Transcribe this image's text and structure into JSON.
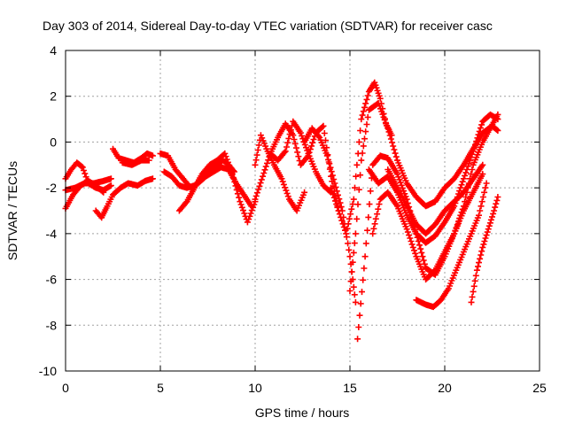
{
  "chart_data": {
    "type": "scatter",
    "title": "Day 303 of 2014, Sidereal Day-to-day VTEC variation (SDTVAR) for receiver casc",
    "xlabel": "GPS time / hours",
    "ylabel": "SDTVAR / TECUs",
    "xlim": [
      0,
      25
    ],
    "ylim": [
      -10,
      4
    ],
    "x_ticks": [
      0,
      5,
      10,
      15,
      20,
      25
    ],
    "y_ticks": [
      -10,
      -8,
      -6,
      -4,
      -2,
      0,
      2,
      4
    ],
    "grid": true,
    "marker": "plus",
    "color": "#ff0000",
    "series": [
      {
        "name": "track-a",
        "x": [
          0,
          0.3,
          0.6,
          0.9,
          1.2,
          1.6,
          2.0,
          2.4
        ],
        "y": [
          -1.6,
          -1.2,
          -0.9,
          -1.1,
          -1.8,
          -2.0,
          -2.1,
          -1.9
        ]
      },
      {
        "name": "track-b",
        "x": [
          0,
          0.4,
          0.8,
          1.2,
          1.6,
          2.0
        ],
        "y": [
          -2.9,
          -2.3,
          -1.9,
          -1.7,
          -1.9,
          -2.2
        ]
      },
      {
        "name": "track-c",
        "x": [
          0,
          0.5,
          1.0,
          1.5,
          2.0,
          2.4
        ],
        "y": [
          -2.1,
          -2.0,
          -1.8,
          -1.8,
          -1.7,
          -1.6
        ]
      },
      {
        "name": "track-d",
        "x": [
          1.6,
          1.9,
          2.2,
          2.5,
          2.9,
          3.3,
          3.8,
          4.2,
          4.6
        ],
        "y": [
          -3.0,
          -3.3,
          -2.8,
          -2.3,
          -2.0,
          -1.8,
          -1.9,
          -1.7,
          -1.6
        ]
      },
      {
        "name": "track-e",
        "x": [
          2.5,
          2.8,
          3.2,
          3.6,
          4.0,
          4.3,
          4.6
        ],
        "y": [
          -0.3,
          -0.7,
          -0.8,
          -0.9,
          -0.7,
          -0.5,
          -0.6
        ]
      },
      {
        "name": "track-f",
        "x": [
          3.0,
          3.5,
          4.0,
          4.4
        ],
        "y": [
          -0.9,
          -1.0,
          -0.8,
          -0.8
        ]
      },
      {
        "name": "track-g",
        "x": [
          5.0,
          5.4,
          5.8,
          6.2,
          6.6
        ],
        "y": [
          -0.5,
          -0.6,
          -1.2,
          -1.6,
          -2.0
        ]
      },
      {
        "name": "track-h",
        "x": [
          5.2,
          5.6,
          6.0,
          6.4,
          6.8,
          7.2,
          7.6,
          8.0,
          8.3,
          8.6,
          8.9
        ],
        "y": [
          -1.3,
          -1.5,
          -1.9,
          -2.0,
          -1.9,
          -1.6,
          -1.2,
          -1.0,
          -0.8,
          -1.0,
          -1.3
        ]
      },
      {
        "name": "track-i",
        "x": [
          6.0,
          6.4,
          6.8,
          7.2,
          7.6,
          8.0,
          8.4,
          8.8,
          9.2,
          9.6,
          10.0
        ],
        "y": [
          -3.0,
          -2.6,
          -2.0,
          -1.4,
          -1.0,
          -0.8,
          -0.5,
          -1.4,
          -2.6,
          -3.5,
          -2.6
        ]
      },
      {
        "name": "track-j",
        "x": [
          7.0,
          7.4,
          7.8,
          8.2,
          8.6,
          9.0,
          9.4,
          9.8
        ],
        "y": [
          -1.8,
          -1.5,
          -1.3,
          -1.1,
          -1.2,
          -1.8,
          -2.3,
          -2.8
        ]
      },
      {
        "name": "track-k",
        "x": [
          10.0,
          10.4,
          10.8,
          11.2,
          11.6,
          12.0,
          12.4,
          12.8,
          13.2,
          13.6,
          14.0,
          14.4
        ],
        "y": [
          -2.5,
          -1.5,
          -0.5,
          0.2,
          0.8,
          0.3,
          -1.0,
          -0.6,
          0.4,
          0.7,
          -1.5,
          -3.0
        ]
      },
      {
        "name": "track-l",
        "x": [
          10.0,
          10.3,
          10.6,
          11.0,
          11.4,
          11.8,
          12.2,
          12.6
        ],
        "y": [
          -1.0,
          0.3,
          -0.3,
          -1.0,
          -1.6,
          -2.5,
          -3.0,
          -2.2
        ]
      },
      {
        "name": "track-m",
        "x": [
          10.8,
          11.2,
          11.6,
          12.0,
          12.4,
          12.8,
          13.2,
          13.6,
          14.0
        ],
        "y": [
          -0.5,
          -0.8,
          -0.4,
          0.9,
          0.4,
          -0.5,
          -1.3,
          -1.9,
          -2.2
        ]
      },
      {
        "name": "track-n",
        "x": [
          12.6,
          13.0,
          13.4,
          13.8,
          14.2,
          14.6,
          15.0,
          15.3
        ],
        "y": [
          0.0,
          0.6,
          0.2,
          -0.6,
          -1.8,
          -3.0,
          -5.0,
          -7.0
        ]
      },
      {
        "name": "track-o",
        "x": [
          14.0,
          14.4,
          14.8,
          15.2,
          15.6,
          16.0,
          16.3,
          16.6,
          16.9,
          17.2
        ],
        "y": [
          -2.0,
          -3.0,
          -4.0,
          -2.5,
          1.0,
          2.2,
          2.6,
          1.9,
          0.8,
          0.3
        ]
      },
      {
        "name": "track-p",
        "x": [
          15.0,
          15.3,
          15.6,
          16.0,
          16.5,
          17.0,
          17.5,
          18.0,
          18.5,
          19.0,
          19.5,
          20.0,
          20.5,
          21.0,
          21.5,
          22.0,
          22.5,
          22.8
        ],
        "y": [
          -6.5,
          -4.0,
          -0.8,
          1.4,
          1.7,
          0.6,
          -0.8,
          -1.8,
          -2.4,
          -2.8,
          -2.6,
          -2.0,
          -1.6,
          -1.0,
          -0.3,
          0.4,
          0.7,
          0.5
        ]
      },
      {
        "name": "track-q",
        "x": [
          15.4,
          15.8,
          16.2,
          16.6,
          17.0,
          17.5,
          18.0,
          18.5,
          19.0,
          19.5,
          20.0,
          20.5,
          21.0,
          21.5,
          22.0,
          22.4,
          22.8
        ],
        "y": [
          -8.6,
          -5.0,
          -1.0,
          -0.6,
          -0.7,
          -1.4,
          -2.5,
          -4.0,
          -5.5,
          -5.8,
          -5.0,
          -4.0,
          -2.8,
          -1.0,
          0.0,
          0.6,
          1.2
        ]
      },
      {
        "name": "track-r",
        "x": [
          16.0,
          16.5,
          17.0,
          17.5,
          18.0,
          18.5,
          19.0,
          19.5,
          20.0,
          20.5,
          21.0,
          21.5,
          22.0,
          22.4,
          22.8
        ],
        "y": [
          -1.2,
          -1.8,
          -1.5,
          -2.2,
          -3.2,
          -4.0,
          -4.4,
          -4.1,
          -3.5,
          -2.8,
          -1.6,
          -0.4,
          0.9,
          1.2,
          1.0
        ]
      },
      {
        "name": "track-s",
        "x": [
          16.2,
          16.6,
          17.0,
          17.5,
          18.0,
          18.5,
          19.0,
          19.5,
          20.0,
          20.5,
          21.0,
          21.5,
          22.0
        ],
        "y": [
          -4.0,
          -2.5,
          -2.2,
          -2.8,
          -3.8,
          -5.0,
          -6.0,
          -5.6,
          -4.8,
          -4.0,
          -3.0,
          -2.2,
          -1.4
        ]
      },
      {
        "name": "track-t",
        "x": [
          17.0,
          17.5,
          18.0,
          18.5,
          19.0,
          19.5,
          20.0,
          20.5,
          21.0,
          21.5,
          22.0
        ],
        "y": [
          -1.2,
          -2.0,
          -2.8,
          -3.6,
          -4.0,
          -3.6,
          -3.0,
          -2.6,
          -2.2,
          -1.6,
          -1.0
        ]
      },
      {
        "name": "track-u",
        "x": [
          18.5,
          19.0,
          19.4,
          19.8,
          20.2,
          20.6,
          21.0,
          21.4,
          21.8,
          22.2
        ],
        "y": [
          -6.9,
          -7.1,
          -7.2,
          -6.9,
          -6.4,
          -5.6,
          -4.8,
          -4.0,
          -3.2,
          -1.8
        ]
      },
      {
        "name": "track-v",
        "x": [
          21.4,
          21.7,
          22.0,
          22.3,
          22.6,
          22.8
        ],
        "y": [
          -7.0,
          -5.6,
          -4.6,
          -3.8,
          -3.0,
          -2.4
        ]
      }
    ]
  }
}
